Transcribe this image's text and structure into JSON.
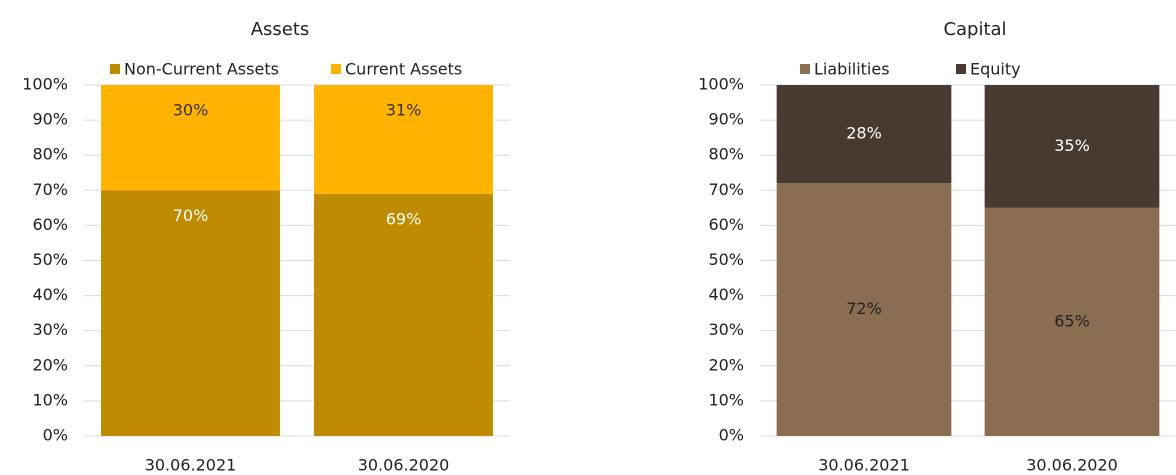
{
  "chart_data": [
    {
      "type": "bar",
      "stacked": true,
      "title": "Assets",
      "categories": [
        "30.06.2021",
        "30.06.2020"
      ],
      "series": [
        {
          "name": "Non-Current Assets",
          "color": "#bf8b00",
          "label_color": "#ffffff",
          "values": [
            70,
            69
          ],
          "value_labels": [
            "70%",
            "69%"
          ]
        },
        {
          "name": "Current Assets",
          "color": "#ffb300",
          "label_color": "#333333",
          "values": [
            30,
            31
          ],
          "value_labels": [
            "30%",
            "31%"
          ]
        }
      ],
      "label_position": "inside_end",
      "ylim": [
        0,
        100
      ],
      "yticks": [
        {
          "value": 0,
          "label": "0%"
        },
        {
          "value": 10,
          "label": "10%"
        },
        {
          "value": 20,
          "label": "20%"
        },
        {
          "value": 30,
          "label": "30%"
        },
        {
          "value": 40,
          "label": "40%"
        },
        {
          "value": 50,
          "label": "50%"
        },
        {
          "value": 60,
          "label": "60%"
        },
        {
          "value": 70,
          "label": "70%"
        },
        {
          "value": 80,
          "label": "80%"
        },
        {
          "value": 90,
          "label": "90%"
        },
        {
          "value": 100,
          "label": "100%"
        }
      ],
      "grid": true,
      "legend": "top"
    },
    {
      "type": "bar",
      "stacked": true,
      "title": "Capital",
      "categories": [
        "30.06.2021",
        "30.06.2020"
      ],
      "series": [
        {
          "name": "Liabilities",
          "color": "#8b6d52",
          "label_color": "#222222",
          "values": [
            72,
            65
          ],
          "value_labels": [
            "72%",
            "65%"
          ]
        },
        {
          "name": "Equity",
          "color": "#483a2e",
          "label_color": "#ffffff",
          "values": [
            28,
            35
          ],
          "value_labels": [
            "28%",
            "35%"
          ]
        }
      ],
      "label_position": "center",
      "ylim": [
        0,
        100
      ],
      "yticks": [
        {
          "value": 0,
          "label": "0%"
        },
        {
          "value": 10,
          "label": "10%"
        },
        {
          "value": 20,
          "label": "20%"
        },
        {
          "value": 30,
          "label": "30%"
        },
        {
          "value": 40,
          "label": "40%"
        },
        {
          "value": 50,
          "label": "50%"
        },
        {
          "value": 60,
          "label": "60%"
        },
        {
          "value": 70,
          "label": "70%"
        },
        {
          "value": 80,
          "label": "80%"
        },
        {
          "value": 90,
          "label": "90%"
        },
        {
          "value": 100,
          "label": "100%"
        }
      ],
      "grid": true,
      "legend": "top"
    }
  ]
}
